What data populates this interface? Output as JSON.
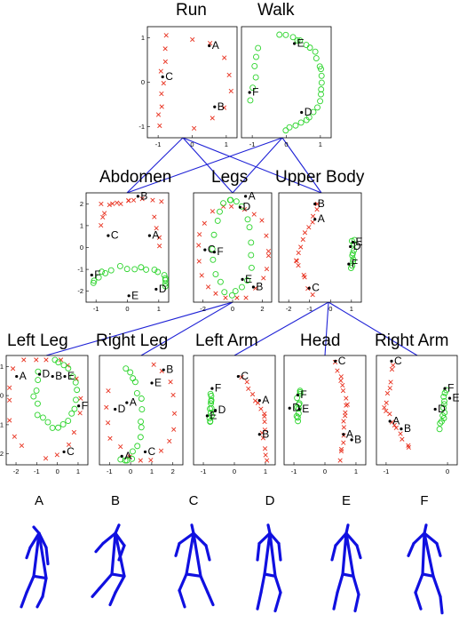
{
  "colors": {
    "cross": "#e8311f",
    "circle": "#2bd42b",
    "tree_line": "#1f22d6",
    "figure": "#1010e0"
  },
  "panels": [
    {
      "id": "run",
      "title": "Run",
      "xticks": [
        "-1",
        "0",
        "1"
      ],
      "yticks": [
        "1",
        "0",
        "-1"
      ],
      "labels": [
        {
          "t": "A",
          "x": 0.72,
          "y": 0.2
        },
        {
          "t": "B",
          "x": 0.78,
          "y": 0.75
        },
        {
          "t": "C",
          "x": 0.2,
          "y": 0.48
        }
      ]
    },
    {
      "id": "walk",
      "title": "Walk",
      "xticks": [
        "-1",
        "0",
        "1"
      ],
      "yticks": [],
      "labels": [
        {
          "t": "E",
          "x": 0.62,
          "y": 0.18
        },
        {
          "t": "F",
          "x": 0.12,
          "y": 0.62
        },
        {
          "t": "D",
          "x": 0.7,
          "y": 0.8
        }
      ]
    },
    {
      "id": "abdomen",
      "title": "Abdomen",
      "xticks": [
        "-1",
        "0",
        "1"
      ],
      "yticks": [
        "2",
        "1",
        "0",
        "-1",
        "-2"
      ],
      "labels": [
        {
          "t": "B",
          "x": 0.66,
          "y": 0.06
        },
        {
          "t": "C",
          "x": 0.3,
          "y": 0.42
        },
        {
          "t": "A",
          "x": 0.8,
          "y": 0.42
        },
        {
          "t": "F",
          "x": 0.1,
          "y": 0.78
        },
        {
          "t": "D",
          "x": 0.88,
          "y": 0.91
        },
        {
          "t": "E",
          "x": 0.55,
          "y": 0.97
        }
      ]
    },
    {
      "id": "legs",
      "title": "Legs",
      "xticks": [
        "-2",
        "0",
        "2"
      ],
      "yticks": [],
      "labels": [
        {
          "t": "A",
          "x": 0.7,
          "y": 0.06
        },
        {
          "t": "D",
          "x": 0.63,
          "y": 0.16
        },
        {
          "t": "C",
          "x": 0.18,
          "y": 0.55
        },
        {
          "t": "F",
          "x": 0.3,
          "y": 0.57
        },
        {
          "t": "E",
          "x": 0.66,
          "y": 0.82
        },
        {
          "t": "B",
          "x": 0.8,
          "y": 0.89
        }
      ]
    },
    {
      "id": "upper-body",
      "title": "Upper Body",
      "xticks": [
        "-2",
        "-1",
        "0",
        "1"
      ],
      "yticks": [],
      "labels": [
        {
          "t": "B",
          "x": 0.47,
          "y": 0.13
        },
        {
          "t": "A",
          "x": 0.47,
          "y": 0.27
        },
        {
          "t": "E",
          "x": 0.93,
          "y": 0.48
        },
        {
          "t": "D",
          "x": 0.9,
          "y": 0.52
        },
        {
          "t": "F",
          "x": 0.88,
          "y": 0.68
        },
        {
          "t": "C",
          "x": 0.4,
          "y": 0.9
        }
      ]
    },
    {
      "id": "left-leg",
      "title": "Left Leg",
      "xticks": [
        "-2",
        "-1",
        "0",
        "1"
      ],
      "yticks": [
        "1",
        "0",
        "-1",
        "-2"
      ],
      "labels": [
        {
          "t": "A",
          "x": 0.16,
          "y": 0.22
        },
        {
          "t": "D",
          "x": 0.44,
          "y": 0.2
        },
        {
          "t": "B",
          "x": 0.6,
          "y": 0.22
        },
        {
          "t": "E",
          "x": 0.75,
          "y": 0.22
        },
        {
          "t": "F",
          "x": 0.92,
          "y": 0.49
        },
        {
          "t": "C",
          "x": 0.74,
          "y": 0.91
        }
      ]
    },
    {
      "id": "right-leg",
      "title": "Right Leg",
      "xticks": [
        "-1",
        "0",
        "1",
        "2"
      ],
      "yticks": [],
      "labels": [
        {
          "t": "B",
          "x": 0.8,
          "y": 0.16
        },
        {
          "t": "E",
          "x": 0.66,
          "y": 0.28
        },
        {
          "t": "A",
          "x": 0.36,
          "y": 0.46
        },
        {
          "t": "D",
          "x": 0.22,
          "y": 0.52
        },
        {
          "t": "C",
          "x": 0.58,
          "y": 0.91
        },
        {
          "t": "A",
          "x": 0.3,
          "y": 0.95
        }
      ]
    },
    {
      "id": "left-arm",
      "title": "Left Arm",
      "xticks": [
        "-1",
        "0",
        "1"
      ],
      "yticks": [],
      "labels": [
        {
          "t": "F",
          "x": 0.26,
          "y": 0.33
        },
        {
          "t": "C",
          "x": 0.58,
          "y": 0.22
        },
        {
          "t": "D",
          "x": 0.3,
          "y": 0.53
        },
        {
          "t": "A",
          "x": 0.84,
          "y": 0.44
        },
        {
          "t": "E",
          "x": 0.2,
          "y": 0.58
        },
        {
          "t": "B",
          "x": 0.84,
          "y": 0.75
        }
      ]
    },
    {
      "id": "head",
      "title": "Head",
      "xticks": [
        "-1",
        "0",
        "1"
      ],
      "yticks": [],
      "labels": [
        {
          "t": "C",
          "x": 0.66,
          "y": 0.08
        },
        {
          "t": "F",
          "x": 0.2,
          "y": 0.39
        },
        {
          "t": "D",
          "x": 0.1,
          "y": 0.51
        },
        {
          "t": "E",
          "x": 0.22,
          "y": 0.52
        },
        {
          "t": "A",
          "x": 0.76,
          "y": 0.75
        },
        {
          "t": "B",
          "x": 0.86,
          "y": 0.8
        }
      ]
    },
    {
      "id": "right-arm",
      "title": "Right Arm",
      "xticks": [
        "-1",
        "0"
      ],
      "yticks": [],
      "labels": [
        {
          "t": "C",
          "x": 0.22,
          "y": 0.08
        },
        {
          "t": "F",
          "x": 0.88,
          "y": 0.33
        },
        {
          "t": "E",
          "x": 0.94,
          "y": 0.42
        },
        {
          "t": "D",
          "x": 0.76,
          "y": 0.52
        },
        {
          "t": "A",
          "x": 0.2,
          "y": 0.63
        },
        {
          "t": "B",
          "x": 0.34,
          "y": 0.7
        }
      ]
    }
  ],
  "figure_labels": [
    "A",
    "B",
    "C",
    "D",
    "E",
    "F"
  ]
}
